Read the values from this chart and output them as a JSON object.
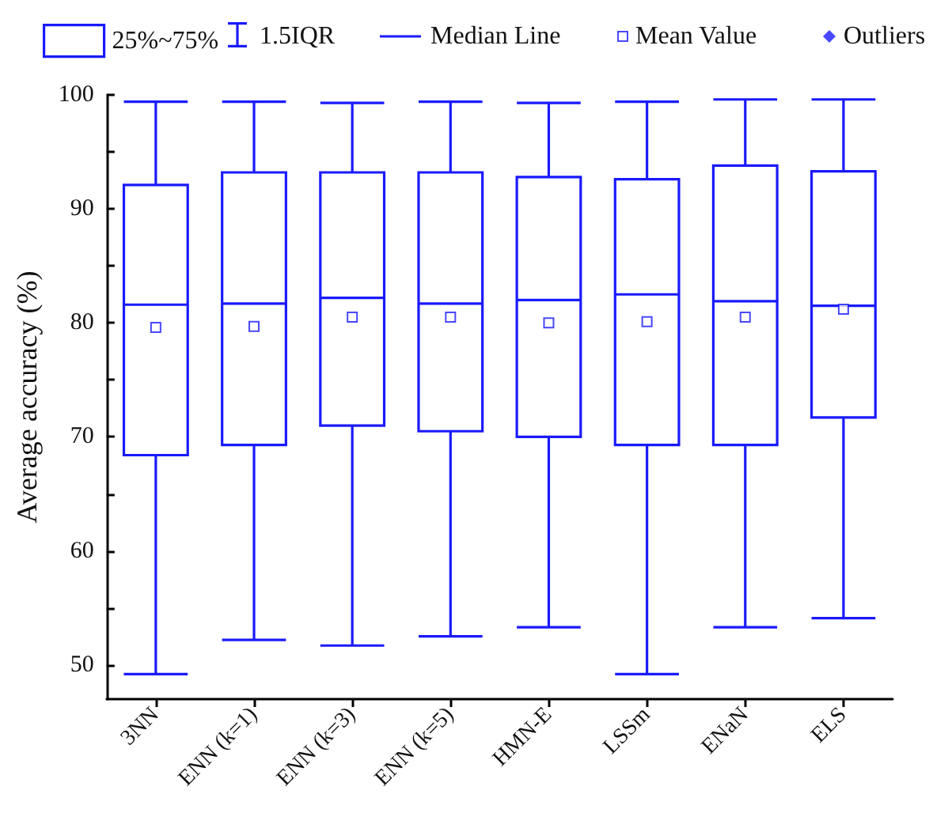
{
  "chart_data": {
    "type": "box",
    "ylabel": "Average accuracy (%)",
    "categories": [
      "3NN",
      "ENN (k=1)",
      "ENN (k=3)",
      "ENN (k=5)",
      "HMN-E",
      "LSSm",
      "ENaN",
      "ELS"
    ],
    "series": [
      {
        "name": "25%~75%",
        "type": "box",
        "color": "#1a1aff",
        "boxes": [
          {
            "low": 49.2,
            "q1": 68.4,
            "median": 81.6,
            "q3": 92.1,
            "high": 99.4
          },
          {
            "low": 52.2,
            "q1": 69.3,
            "median": 81.7,
            "q3": 93.2,
            "high": 99.4
          },
          {
            "low": 51.7,
            "q1": 71.0,
            "median": 82.2,
            "q3": 93.2,
            "high": 99.3
          },
          {
            "low": 52.5,
            "q1": 70.5,
            "median": 81.7,
            "q3": 93.2,
            "high": 99.4
          },
          {
            "low": 53.3,
            "q1": 70.0,
            "median": 82.0,
            "q3": 92.8,
            "high": 99.3
          },
          {
            "low": 49.2,
            "q1": 69.3,
            "median": 82.5,
            "q3": 92.6,
            "high": 99.4
          },
          {
            "low": 53.3,
            "q1": 69.3,
            "median": 81.9,
            "q3": 93.8,
            "high": 99.6
          },
          {
            "low": 54.1,
            "q1": 71.7,
            "median": 81.5,
            "q3": 93.3,
            "high": 99.6
          }
        ]
      },
      {
        "name": "Mean Value",
        "type": "scatter",
        "marker": "square",
        "color": "#1a1aff",
        "values": [
          79.6,
          79.7,
          80.5,
          80.5,
          80.0,
          80.1,
          80.5,
          81.2
        ]
      },
      {
        "name": "Outliers",
        "type": "scatter",
        "marker": "diamond",
        "color": "#1a1aff",
        "values": [
          null,
          null,
          null,
          null,
          null,
          null,
          null,
          null
        ]
      }
    ],
    "annotations": [
      "1.5IQR",
      "Median Line"
    ],
    "ylim": [
      47,
      100
    ],
    "yticks": [
      50,
      {
        "value": 55,
        "label": null
      },
      60,
      {
        "value": 65,
        "label": null
      },
      70,
      {
        "value": 75,
        "label": null
      },
      80,
      {
        "value": 85,
        "label": null
      },
      90,
      {
        "value": 95,
        "label": null
      },
      100
    ],
    "grid": false,
    "legend": "top"
  }
}
